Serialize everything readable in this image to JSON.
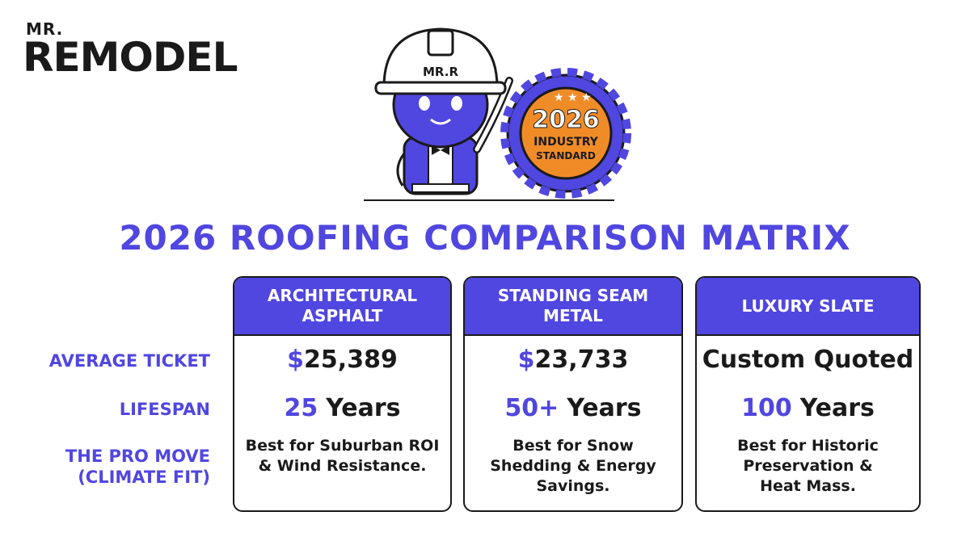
{
  "logo": {
    "small": "MR.",
    "large": "REMODEL"
  },
  "mascot": {
    "helmet": "MR.R"
  },
  "badge": {
    "year": "2026",
    "lines": [
      "INDUSTRY",
      "STANDARD"
    ]
  },
  "title": "2026 ROOFING COMPARISON MATRIX",
  "row_labels": [
    [
      "AVERAGE TICKET"
    ],
    [
      "LIFESPAN"
    ],
    [
      "THE PRO MOVE",
      "(CLIMATE FIT)"
    ]
  ],
  "columns": [
    {
      "header": [
        "ARCHITECTURAL",
        "ASPHALT"
      ],
      "ticket": {
        "accent": "$",
        "text": "25,389"
      },
      "lifespan": {
        "accent": "25",
        "text": "Years"
      },
      "pro_move": [
        "Best for Suburban ROI",
        "& Wind Resistance."
      ]
    },
    {
      "header": [
        "STANDING SEAM",
        "METAL"
      ],
      "ticket": {
        "accent": "$",
        "text": "23,733"
      },
      "lifespan": {
        "accent": "50+",
        "text": "Years"
      },
      "pro_move": [
        "Best for Snow",
        "Shedding & Energy",
        "Savings."
      ]
    },
    {
      "header": [
        "LUXURY SLATE"
      ],
      "ticket": {
        "text": "Custom Quoted"
      },
      "lifespan": {
        "accent": "100",
        "text": "Years"
      },
      "pro_move": [
        "Best for Historic",
        "Preservation &",
        "Heat Mass."
      ]
    }
  ]
}
